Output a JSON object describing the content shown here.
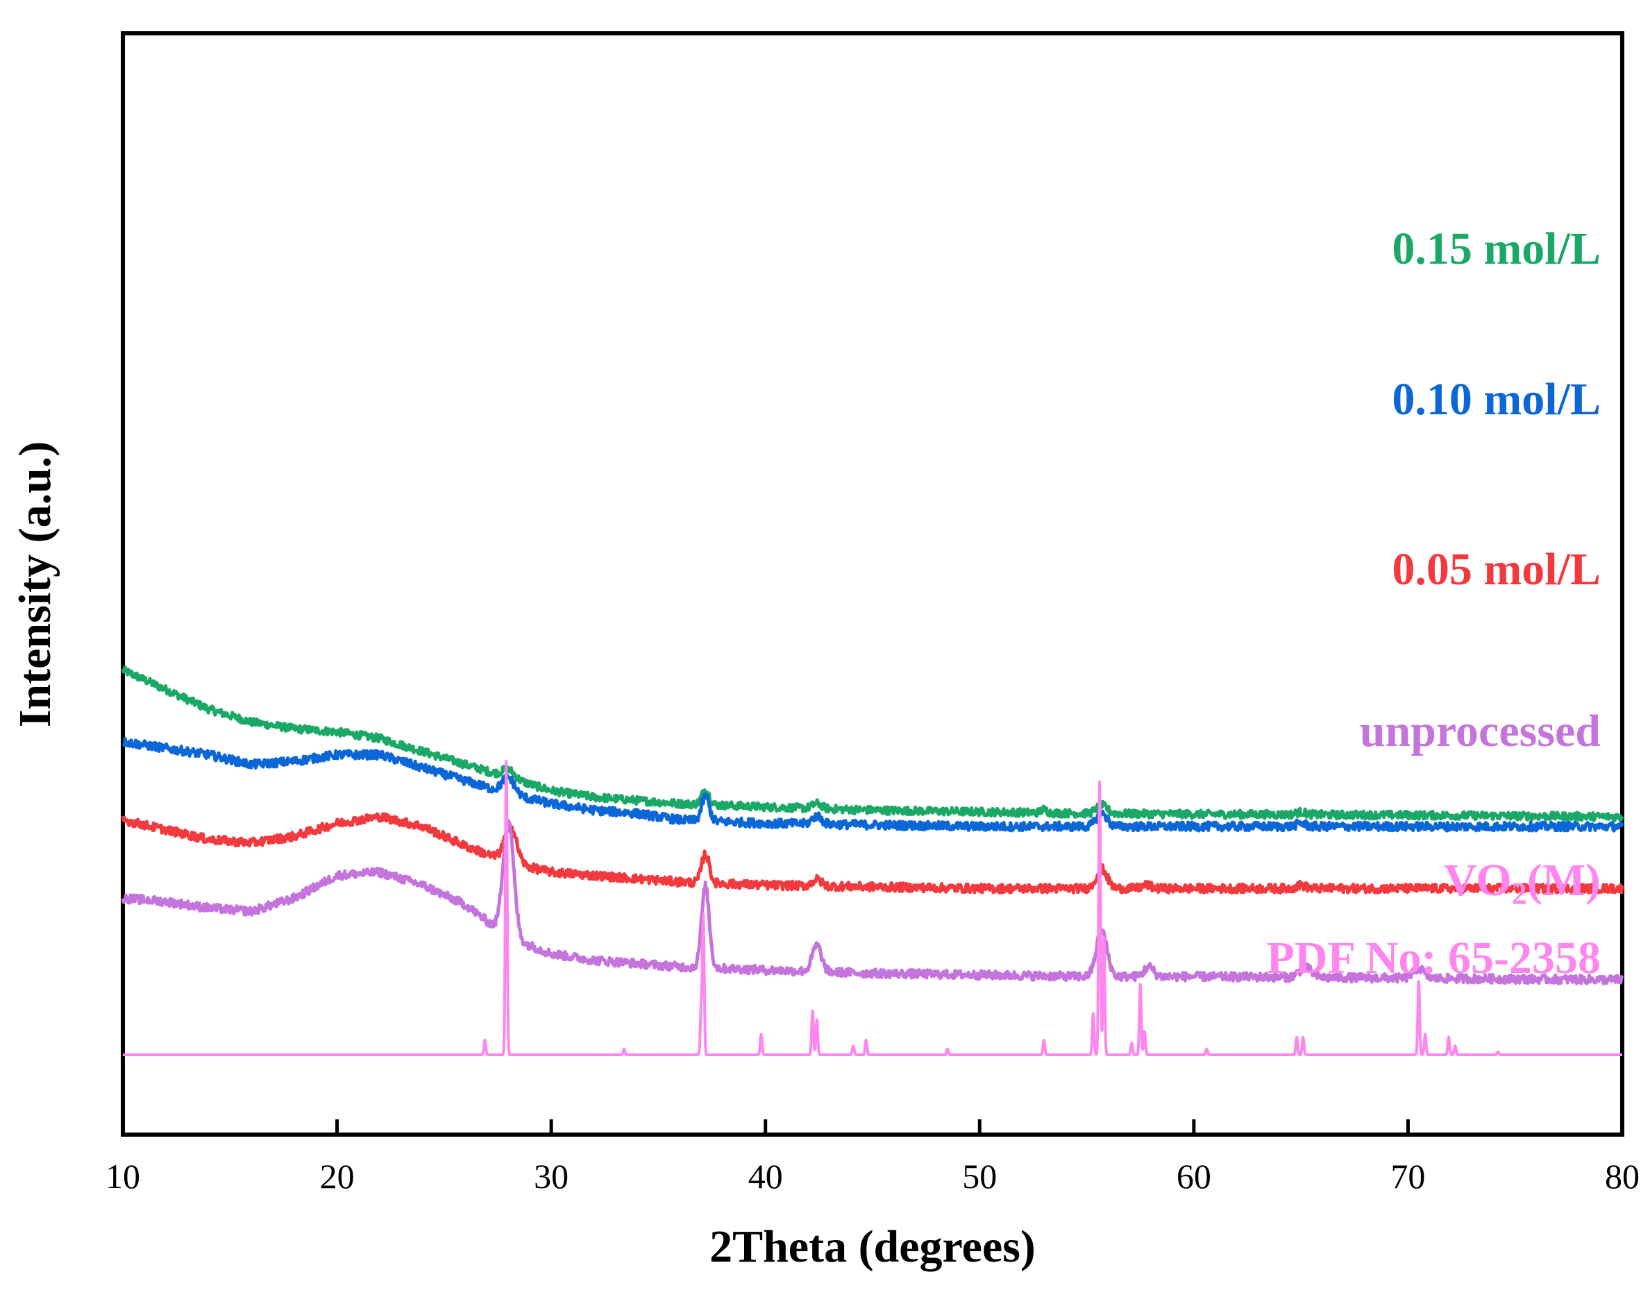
{
  "chart_data": {
    "type": "line",
    "title": "",
    "xlabel": "2Theta (degrees)",
    "ylabel": "Intensity (a.u.)",
    "xlim": [
      10,
      80
    ],
    "xticks": [
      "10",
      "20",
      "30",
      "40",
      "50",
      "60",
      "70",
      "80"
    ],
    "yticks": [],
    "grid": false,
    "series": [
      {
        "name": "0.15 mol/L",
        "color": "#1aa866",
        "offset": 74,
        "background": [
          [
            10,
            96
          ],
          [
            12,
            90
          ],
          [
            14,
            84
          ],
          [
            16,
            80
          ],
          [
            18,
            78
          ],
          [
            20,
            77
          ],
          [
            22,
            75
          ],
          [
            24,
            71
          ],
          [
            26,
            67
          ],
          [
            28,
            63
          ],
          [
            30,
            59
          ],
          [
            32,
            57
          ],
          [
            34,
            56
          ],
          [
            36,
            55
          ],
          [
            40,
            54
          ],
          [
            45,
            53
          ],
          [
            50,
            52.5
          ],
          [
            55,
            52
          ],
          [
            60,
            51.8
          ],
          [
            70,
            51.5
          ],
          [
            80,
            51
          ]
        ],
        "peaks": [
          [
            28.0,
            2.5,
            0.4
          ],
          [
            37.2,
            4.5,
            0.25
          ],
          [
            42.4,
            1.5,
            0.3
          ],
          [
            53.0,
            1,
            0.2
          ],
          [
            55.7,
            2.5,
            0.35
          ],
          [
            65.0,
            0.8,
            0.3
          ]
        ],
        "noise": 1.2
      },
      {
        "name": "0.10 mol/L",
        "color": "#0b66d8",
        "offset": 52,
        "background": [
          [
            10,
            96
          ],
          [
            12,
            94
          ],
          [
            14,
            92
          ],
          [
            16,
            89
          ],
          [
            18,
            90
          ],
          [
            20,
            92
          ],
          [
            22,
            92
          ],
          [
            24,
            88
          ],
          [
            26,
            84
          ],
          [
            28,
            80
          ],
          [
            30,
            77
          ],
          [
            32,
            75
          ],
          [
            34,
            74
          ],
          [
            36,
            72
          ],
          [
            40,
            71
          ],
          [
            45,
            70.5
          ],
          [
            50,
            70
          ],
          [
            55,
            70
          ],
          [
            60,
            70
          ],
          [
            70,
            70
          ],
          [
            80,
            70
          ]
        ],
        "peaks": [
          [
            28.0,
            5,
            0.4
          ],
          [
            37.2,
            7.5,
            0.25
          ],
          [
            42.4,
            2.5,
            0.3
          ],
          [
            55.7,
            4,
            0.35
          ],
          [
            65.0,
            1,
            0.3
          ]
        ],
        "noise": 1.3
      },
      {
        "name": "0.05 mol/L",
        "color": "#f2393e",
        "offset": 28,
        "background": [
          [
            10,
            96
          ],
          [
            12,
            93
          ],
          [
            14,
            90
          ],
          [
            16,
            89
          ],
          [
            18,
            91
          ],
          [
            20,
            95
          ],
          [
            22,
            97
          ],
          [
            24,
            94
          ],
          [
            26,
            88
          ],
          [
            28,
            83
          ],
          [
            30,
            80
          ],
          [
            32,
            79
          ],
          [
            34,
            78
          ],
          [
            36,
            77
          ],
          [
            40,
            76
          ],
          [
            45,
            75.5
          ],
          [
            50,
            75
          ],
          [
            55,
            75
          ],
          [
            60,
            75
          ],
          [
            70,
            75
          ],
          [
            80,
            75
          ]
        ],
        "peaks": [
          [
            28.1,
            11,
            0.4
          ],
          [
            37.2,
            9,
            0.25
          ],
          [
            42.4,
            2,
            0.3
          ],
          [
            55.7,
            6,
            0.35
          ],
          [
            57.8,
            1,
            0.3
          ],
          [
            65.0,
            1,
            0.3
          ]
        ],
        "noise": 1.3
      },
      {
        "name": "unprocessed",
        "color": "#c474dc",
        "offset": 4,
        "background": [
          [
            10,
            96
          ],
          [
            12,
            95
          ],
          [
            14,
            93
          ],
          [
            16,
            92
          ],
          [
            18,
            96
          ],
          [
            20,
            103
          ],
          [
            22,
            104
          ],
          [
            24,
            100
          ],
          [
            26,
            94
          ],
          [
            28,
            84
          ],
          [
            30,
            79
          ],
          [
            32,
            77
          ],
          [
            34,
            76
          ],
          [
            36,
            75
          ],
          [
            40,
            74
          ],
          [
            45,
            73
          ],
          [
            50,
            72.5
          ],
          [
            55,
            72
          ],
          [
            60,
            72
          ],
          [
            70,
            71.5
          ],
          [
            80,
            71
          ]
        ],
        "peaks": [
          [
            28.0,
            36,
            0.35
          ],
          [
            37.2,
            25,
            0.25
          ],
          [
            42.4,
            8,
            0.3
          ],
          [
            55.7,
            14,
            0.35
          ],
          [
            57.9,
            3,
            0.3
          ],
          [
            65.2,
            3,
            0.4
          ],
          [
            70.5,
            3,
            0.35
          ]
        ],
        "noise": 1.3
      },
      {
        "name": "VO₂(M) PDF No: 65-2358",
        "color": "#ff85ef",
        "offset": 0,
        "reference_peaks": [
          [
            26.9,
            5
          ],
          [
            27.9,
            100
          ],
          [
            33.4,
            2
          ],
          [
            37.0,
            15
          ],
          [
            37.1,
            47
          ],
          [
            39.8,
            7
          ],
          [
            42.2,
            15
          ],
          [
            42.4,
            12
          ],
          [
            44.1,
            3
          ],
          [
            44.7,
            5
          ],
          [
            48.5,
            2
          ],
          [
            53.0,
            5
          ],
          [
            55.3,
            14
          ],
          [
            55.6,
            93
          ],
          [
            55.8,
            40
          ],
          [
            57.1,
            4
          ],
          [
            57.5,
            24
          ],
          [
            57.7,
            8
          ],
          [
            60.6,
            2
          ],
          [
            64.8,
            6
          ],
          [
            65.1,
            6
          ],
          [
            70.5,
            25
          ],
          [
            70.8,
            7
          ],
          [
            71.9,
            6
          ],
          [
            72.2,
            3
          ],
          [
            74.2,
            1
          ]
        ],
        "baseline": 0
      }
    ],
    "labels": {
      "s015": "0.15 mol/L",
      "s010": "0.10 mol/L",
      "s005": "0.05 mol/L",
      "unproc": "unprocessed",
      "vo2_main": "VO",
      "vo2_sub": "2",
      "vo2_rest": "(M)",
      "pdf": "PDF No: 65-2358"
    }
  }
}
